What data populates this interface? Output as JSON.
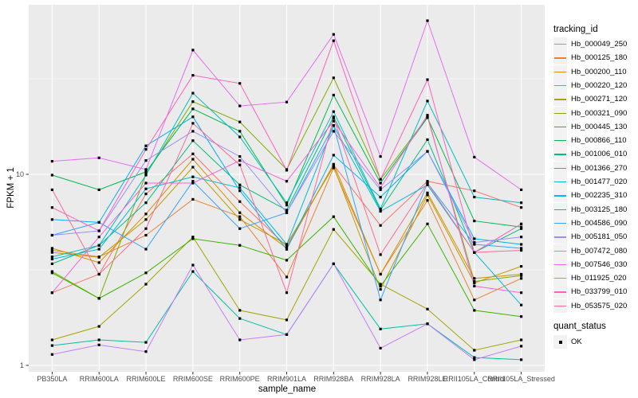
{
  "chart_data": {
    "type": "line",
    "xlabel": "sample_name",
    "ylabel": "FPKM + 1",
    "y_scale": "log10",
    "ylim": [
      0.93,
      77
    ],
    "y_ticks": [
      {
        "label": "1",
        "value": 1
      },
      {
        "label": "10",
        "value": 10
      }
    ],
    "minor_breaks": [
      3.162,
      31.623
    ],
    "grid": "on",
    "legend_position": "right",
    "point_marker": "black-square",
    "categories": [
      "PB350LA",
      "RRIM600LA",
      "RRIM600LE",
      "RRIM600SE",
      "RRIM600PE",
      "RRIM901LA",
      "RRIM928BA",
      "RRIM928LA",
      "RRIM928LE",
      "RRII105LA_Control",
      "RRII105LA_Stressed"
    ],
    "series": [
      {
        "name": "Hb_000049_250",
        "color": "#F8766D",
        "values": [
          2.4,
          3.0,
          7.9,
          12.8,
          7.2,
          4.2,
          11.2,
          5.4,
          9.2,
          8.2,
          6.7
        ]
      },
      {
        "name": "Hb_000125_180",
        "color": "#EA8331",
        "values": [
          4.0,
          3.7,
          4.8,
          7.4,
          6.0,
          2.9,
          10.8,
          3.0,
          7.3,
          2.2,
          2.85
        ]
      },
      {
        "name": "Hb_000200_110",
        "color": "#D89000",
        "values": [
          4.1,
          3.45,
          6.2,
          12.0,
          6.3,
          4.1,
          11.3,
          3.0,
          8.0,
          2.85,
          3.0
        ]
      },
      {
        "name": "Hb_000220_120",
        "color": "#C09B00",
        "values": [
          3.9,
          3.68,
          5.8,
          10.9,
          5.8,
          4.3,
          11.0,
          2.5,
          7.8,
          2.7,
          3.3
        ]
      },
      {
        "name": "Hb_000271_120",
        "color": "#A3A500",
        "values": [
          1.36,
          1.6,
          2.66,
          4.7,
          1.94,
          1.73,
          5.15,
          2.66,
          1.97,
          1.2,
          1.36
        ]
      },
      {
        "name": "Hb_000321_090",
        "color": "#7CAE00",
        "values": [
          3.1,
          2.24,
          10.0,
          24.0,
          18.8,
          10.6,
          32.0,
          9.4,
          20.0,
          2.75,
          2.95
        ]
      },
      {
        "name": "Hb_000445_130",
        "color": "#39B600",
        "values": [
          3.05,
          2.24,
          3.05,
          4.6,
          4.25,
          3.55,
          6.0,
          2.6,
          5.5,
          1.94,
          1.8
        ]
      },
      {
        "name": "Hb_000866_110",
        "color": "#00BB4E",
        "values": [
          9.9,
          8.3,
          10.3,
          22.0,
          16.8,
          6.9,
          26.0,
          9.0,
          19.8,
          5.7,
          5.3
        ]
      },
      {
        "name": "Hb_001006_010",
        "color": "#00BF7D",
        "values": [
          3.4,
          4.25,
          7.1,
          15.0,
          8.8,
          6.5,
          20.0,
          6.5,
          15.2,
          3.9,
          5.2
        ]
      },
      {
        "name": "Hb_001366_270",
        "color": "#00C1A3",
        "values": [
          1.27,
          1.36,
          1.32,
          3.1,
          1.76,
          1.45,
          3.4,
          1.55,
          1.65,
          1.1,
          1.07
        ]
      },
      {
        "name": "Hb_001477_020",
        "color": "#00BFC4",
        "values": [
          3.7,
          4.25,
          9.9,
          26.6,
          15.7,
          7.1,
          21.3,
          6.6,
          24.2,
          7.6,
          7.1
        ]
      },
      {
        "name": "Hb_002235_310",
        "color": "#00BAE0",
        "values": [
          3.6,
          4.06,
          8.4,
          9.7,
          8.5,
          4.3,
          18.0,
          6.4,
          8.8,
          3.9,
          2.07
        ]
      },
      {
        "name": "Hb_003125_180",
        "color": "#00B0F6",
        "values": [
          5.8,
          5.6,
          14.1,
          20.0,
          8.2,
          4.05,
          12.6,
          7.6,
          13.2,
          4.6,
          4.3
        ]
      },
      {
        "name": "Hb_004586_090",
        "color": "#35A2FF",
        "values": [
          4.8,
          5.6,
          4.06,
          9.2,
          5.2,
          6.3,
          18.0,
          2.2,
          9.0,
          4.3,
          4.1
        ]
      },
      {
        "name": "Hb_005181_050",
        "color": "#9590FF",
        "values": [
          4.8,
          5.06,
          11.8,
          16.8,
          12.4,
          6.3,
          16.8,
          8.3,
          13.2,
          4.4,
          4.7
        ]
      },
      {
        "name": "Hb_007472_080",
        "color": "#C77CFF",
        "values": [
          1.14,
          1.28,
          1.18,
          3.35,
          1.36,
          1.45,
          3.4,
          1.23,
          1.65,
          1.07,
          1.26
        ]
      },
      {
        "name": "Hb_007546_030",
        "color": "#E76BF3",
        "values": [
          11.7,
          12.2,
          10.6,
          44.7,
          22.8,
          23.9,
          54.0,
          12.4,
          63.7,
          12.3,
          8.3
        ]
      },
      {
        "name": "Hb_011925_020",
        "color": "#FA62DB",
        "values": [
          2.4,
          4.7,
          9.0,
          9.0,
          11.8,
          9.2,
          19.0,
          8.5,
          20.4,
          2.6,
          2.4
        ]
      },
      {
        "name": "Hb_033799_010",
        "color": "#FF62BC",
        "values": [
          6.7,
          5.06,
          13.5,
          33.0,
          29.9,
          10.5,
          50.0,
          9.4,
          31.3,
          3.9,
          5.5
        ]
      },
      {
        "name": "Hb_053575_020",
        "color": "#FF6A98",
        "values": [
          8.3,
          3.0,
          5.2,
          18.5,
          11.2,
          2.4,
          19.7,
          3.8,
          9.0,
          3.9,
          4.0
        ]
      }
    ]
  },
  "legend": {
    "tracking_title": "tracking_id",
    "quant_title": "quant_status",
    "quant_value": "OK"
  },
  "theme": {
    "panel_bg": "#EBEBEB",
    "grid_major": "#FFFFFF",
    "grid_minor": "#F5F5F5",
    "tick_color": "#333333",
    "tick_text": "#4D4D4D",
    "marker": "#000000",
    "key_bg": "#F2F2F2"
  }
}
